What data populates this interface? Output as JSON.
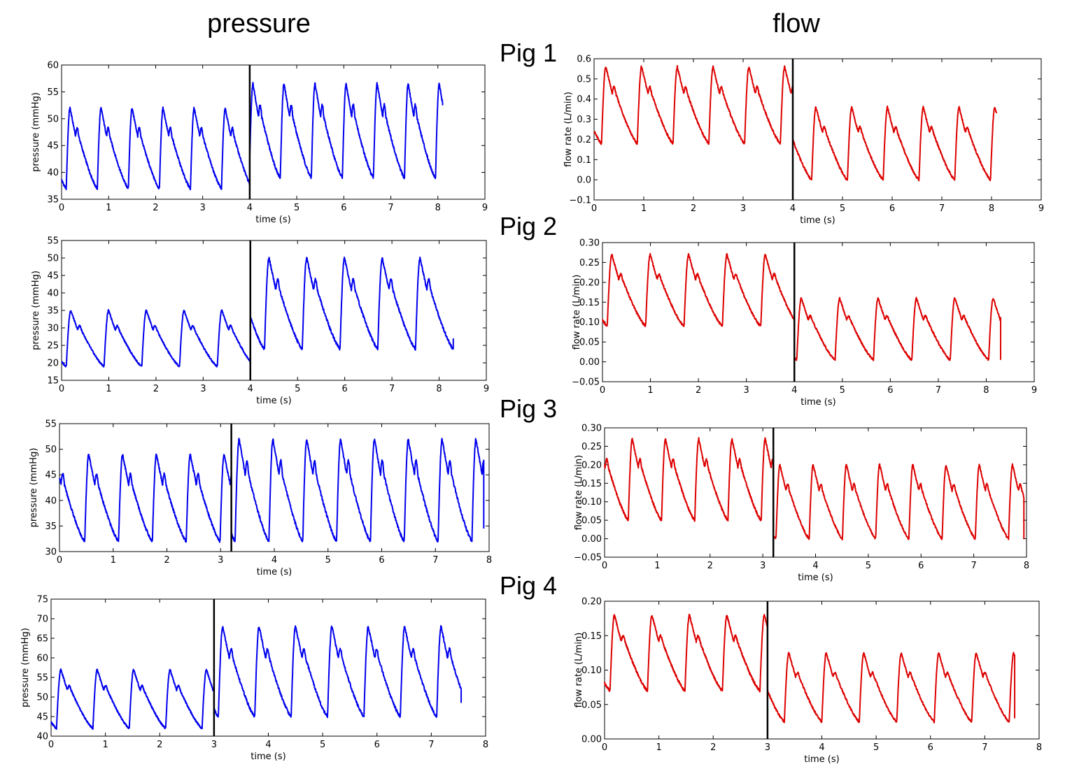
{
  "figure": {
    "left_title": "pressure",
    "right_title": "flow",
    "pig_labels": [
      "Pig 1",
      "Pig 2",
      "Pig 3",
      "Pig 4"
    ]
  },
  "chart_data": [
    {
      "id": "p1",
      "type": "line",
      "xlabel": "time (s)",
      "ylabel": "pressure (mmHg)",
      "xlim": [
        0,
        9
      ],
      "ylim": [
        35,
        60
      ],
      "xticks": [
        "0",
        "1",
        "2",
        "3",
        "4",
        "5",
        "6",
        "7",
        "8",
        "9"
      ],
      "yticks": [
        "35",
        "40",
        "45",
        "50",
        "55",
        "60"
      ],
      "color": "#0000ee",
      "vline": 4.0,
      "period": 0.66,
      "t_end": 8.1,
      "segments": [
        {
          "t0": 0,
          "t1": 4.0,
          "phase": 0.1,
          "min": 37,
          "max": 52,
          "notch": 0.4
        },
        {
          "t0": 4.0,
          "t1": 8.1,
          "phase": 0.03,
          "min": 39,
          "max": 56.5,
          "notch": 0.5
        }
      ],
      "last_value": 52.5
    },
    {
      "id": "f1",
      "type": "line",
      "xlabel": "time (s)",
      "ylabel": "flow rate (L/min)",
      "xlim": [
        0,
        9
      ],
      "ylim": [
        -0.1,
        0.6
      ],
      "xticks": [
        "0",
        "1",
        "2",
        "3",
        "4",
        "5",
        "6",
        "7",
        "8",
        "9"
      ],
      "yticks": [
        "−0.1",
        "0.0",
        "0.1",
        "0.2",
        "0.3",
        "0.4",
        "0.5",
        "0.6"
      ],
      "color": "#dd0000",
      "vline": 4.0,
      "period": 0.72,
      "t_end": 8.1,
      "segments": [
        {
          "t0": 0,
          "t1": 4.0,
          "phase": 0.15,
          "min": 0.18,
          "max": 0.56,
          "notch": 0.35
        },
        {
          "t0": 4.0,
          "t1": 8.1,
          "phase": 0.06,
          "min": 0.0,
          "max": 0.36,
          "notch": 0.3
        }
      ],
      "last_value": 0.33
    },
    {
      "id": "p2",
      "type": "line",
      "xlabel": "time (s)",
      "ylabel": "pressure (mmHg)",
      "xlim": [
        0,
        9
      ],
      "ylim": [
        15,
        55
      ],
      "xticks": [
        "0",
        "1",
        "2",
        "3",
        "4",
        "5",
        "6",
        "7",
        "8",
        "9"
      ],
      "yticks": [
        "15",
        "20",
        "25",
        "30",
        "35",
        "40",
        "45",
        "50",
        "55"
      ],
      "color": "#0000ee",
      "vline": 4.0,
      "period": 0.8,
      "t_end": 8.3,
      "segments": [
        {
          "t0": 0,
          "t1": 4.0,
          "phase": 0.1,
          "min": 19,
          "max": 35,
          "notch": 0.3
        },
        {
          "t0": 4.0,
          "t1": 8.3,
          "phase": 0.3,
          "min": 24,
          "max": 50,
          "notch": 0.45
        }
      ],
      "last_value": 27
    },
    {
      "id": "f2",
      "type": "line",
      "xlabel": "time (s)",
      "ylabel": "flow rate (L/min)",
      "xlim": [
        0,
        9
      ],
      "ylim": [
        -0.05,
        0.3
      ],
      "xticks": [
        "0",
        "1",
        "2",
        "3",
        "4",
        "5",
        "6",
        "7",
        "8",
        "9"
      ],
      "yticks": [
        "−0.05",
        "0.00",
        "0.05",
        "0.10",
        "0.15",
        "0.20",
        "0.25",
        "0.30"
      ],
      "color": "#dd0000",
      "vline": 4.0,
      "period": 0.8,
      "t_end": 8.3,
      "segments": [
        {
          "t0": 0,
          "t1": 4.0,
          "phase": 0.1,
          "min": 0.09,
          "max": 0.27,
          "notch": 0.3
        },
        {
          "t0": 4.0,
          "t1": 8.3,
          "phase": 0.05,
          "min": 0.005,
          "max": 0.16,
          "notch": 0.25
        }
      ],
      "last_value": 0.005
    },
    {
      "id": "p3",
      "type": "line",
      "xlabel": "time (s)",
      "ylabel": "pressure (mmHg)",
      "xlim": [
        0,
        8
      ],
      "ylim": [
        30,
        55
      ],
      "xticks": [
        "0",
        "1",
        "2",
        "3",
        "4",
        "5",
        "6",
        "7",
        "8"
      ],
      "yticks": [
        "30",
        "35",
        "40",
        "45",
        "50",
        "55"
      ],
      "color": "#0000ee",
      "vline": 3.2,
      "period": 0.63,
      "t_end": 7.9,
      "segments": [
        {
          "t0": 0,
          "t1": 3.2,
          "phase": 0.47,
          "min": 32,
          "max": 49,
          "notch": 0.5
        },
        {
          "t0": 3.2,
          "t1": 7.9,
          "phase": 0.12,
          "min": 32,
          "max": 52,
          "notch": 0.55
        }
      ],
      "last_value": 34.5
    },
    {
      "id": "f3",
      "type": "line",
      "xlabel": "time (s)",
      "ylabel": "flow rate (L/min)",
      "xlim": [
        0,
        8
      ],
      "ylim": [
        -0.05,
        0.3
      ],
      "xticks": [
        "0",
        "1",
        "2",
        "3",
        "4",
        "5",
        "6",
        "7",
        "8"
      ],
      "yticks": [
        "−0.05",
        "0.00",
        "0.05",
        "0.10",
        "0.15",
        "0.20",
        "0.25",
        "0.30"
      ],
      "color": "#dd0000",
      "vline": 3.2,
      "period": 0.63,
      "t_end": 7.95,
      "segments": [
        {
          "t0": 0,
          "t1": 3.2,
          "phase": 0.45,
          "min": 0.05,
          "max": 0.27,
          "notch": 0.4
        },
        {
          "t0": 3.2,
          "t1": 7.95,
          "phase": 0.1,
          "min": 0.0,
          "max": 0.2,
          "notch": 0.35
        }
      ],
      "last_value": 0.0
    },
    {
      "id": "p4",
      "type": "line",
      "xlabel": "time (s)",
      "ylabel": "pressure (mmHg)",
      "xlim": [
        0,
        8
      ],
      "ylim": [
        40,
        75
      ],
      "xticks": [
        "0",
        "1",
        "2",
        "3",
        "4",
        "5",
        "6",
        "7",
        "8"
      ],
      "yticks": [
        "40",
        "45",
        "50",
        "55",
        "60",
        "65",
        "70",
        "75"
      ],
      "color": "#0000ee",
      "vline": 3.0,
      "period": 0.67,
      "t_end": 7.55,
      "segments": [
        {
          "t0": 0,
          "t1": 3.0,
          "phase": 0.1,
          "min": 42,
          "max": 57,
          "notch": 0.3
        },
        {
          "t0": 3.0,
          "t1": 7.55,
          "phase": 0.4,
          "min": 45,
          "max": 68,
          "notch": 0.4
        }
      ],
      "last_value": 48.5
    },
    {
      "id": "f4",
      "type": "line",
      "xlabel": "time (s)",
      "ylabel": "flow rate (L/min)",
      "xlim": [
        0,
        8
      ],
      "ylim": [
        0,
        0.2
      ],
      "xticks": [
        "0",
        "1",
        "2",
        "3",
        "4",
        "5",
        "6",
        "7",
        "8"
      ],
      "yticks": [
        "0.00",
        "0.05",
        "0.10",
        "0.15",
        "0.20"
      ],
      "color": "#dd0000",
      "vline": 3.0,
      "period": 0.69,
      "t_end": 7.55,
      "segments": [
        {
          "t0": 0,
          "t1": 3.0,
          "phase": 0.1,
          "min": 0.07,
          "max": 0.18,
          "notch": 0.3
        },
        {
          "t0": 3.0,
          "t1": 7.55,
          "phase": 0.55,
          "min": 0.025,
          "max": 0.125,
          "notch": 0.25
        }
      ],
      "last_value": 0.03
    }
  ]
}
